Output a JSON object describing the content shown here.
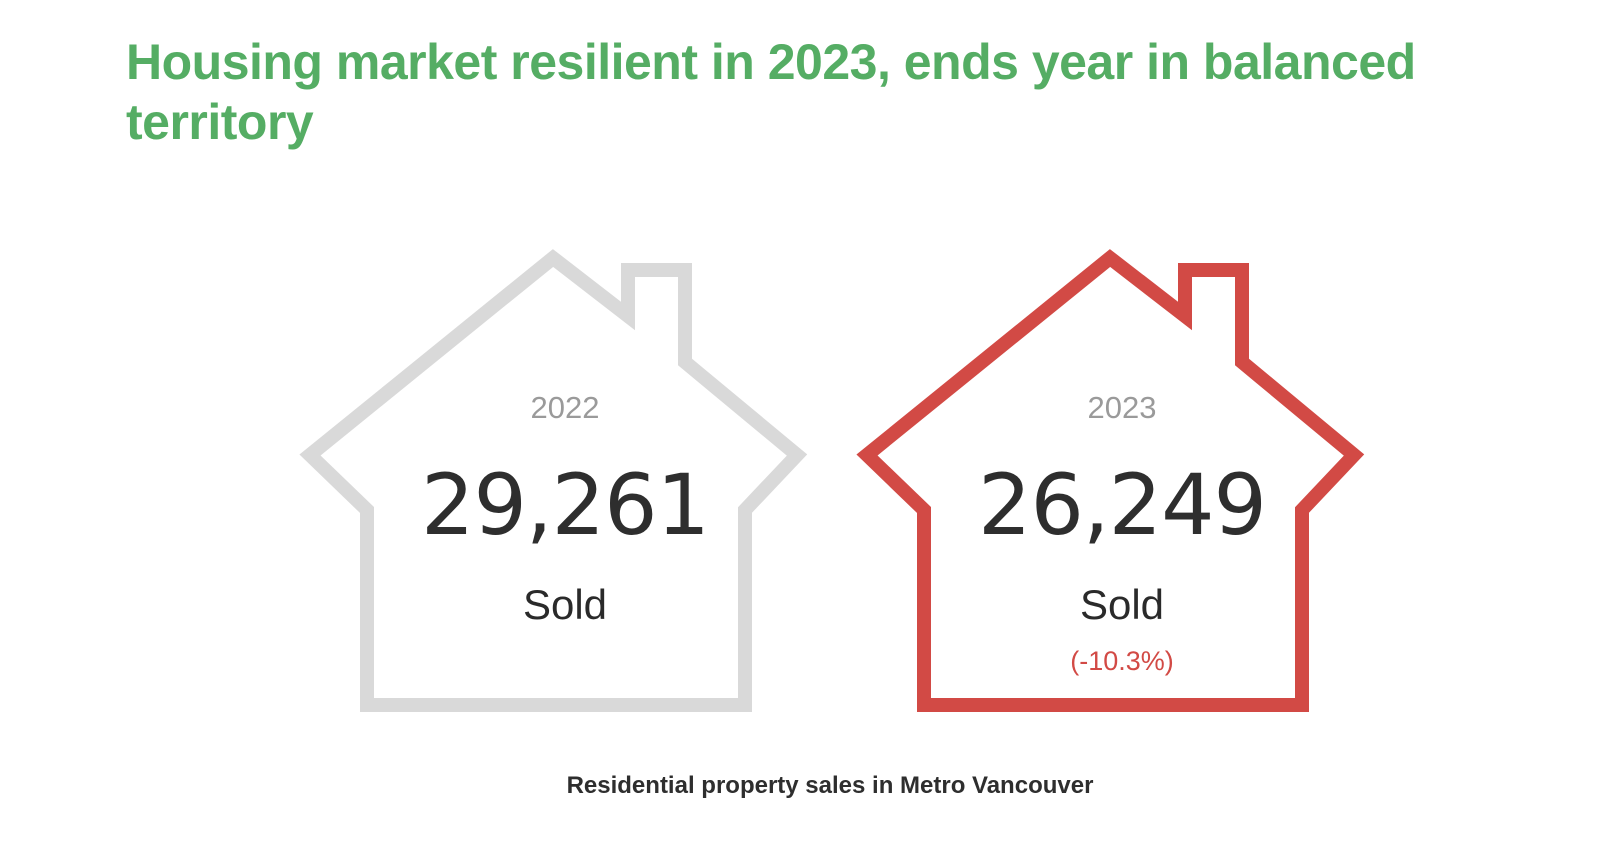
{
  "headline": "Housing market resilient in 2023, ends year in balanced territory",
  "colors": {
    "headline": "#55ad64",
    "house_2022_outline": "#d9d9d9",
    "house_2023_outline": "#d24a45",
    "change_text": "#d24a45"
  },
  "houses": [
    {
      "year": "2022",
      "value": "29,261",
      "label": "Sold",
      "change": ""
    },
    {
      "year": "2023",
      "value": "26,249",
      "label": "Sold",
      "change": "(-10.3%)"
    }
  ],
  "caption": "Residential property sales in Metro Vancouver"
}
